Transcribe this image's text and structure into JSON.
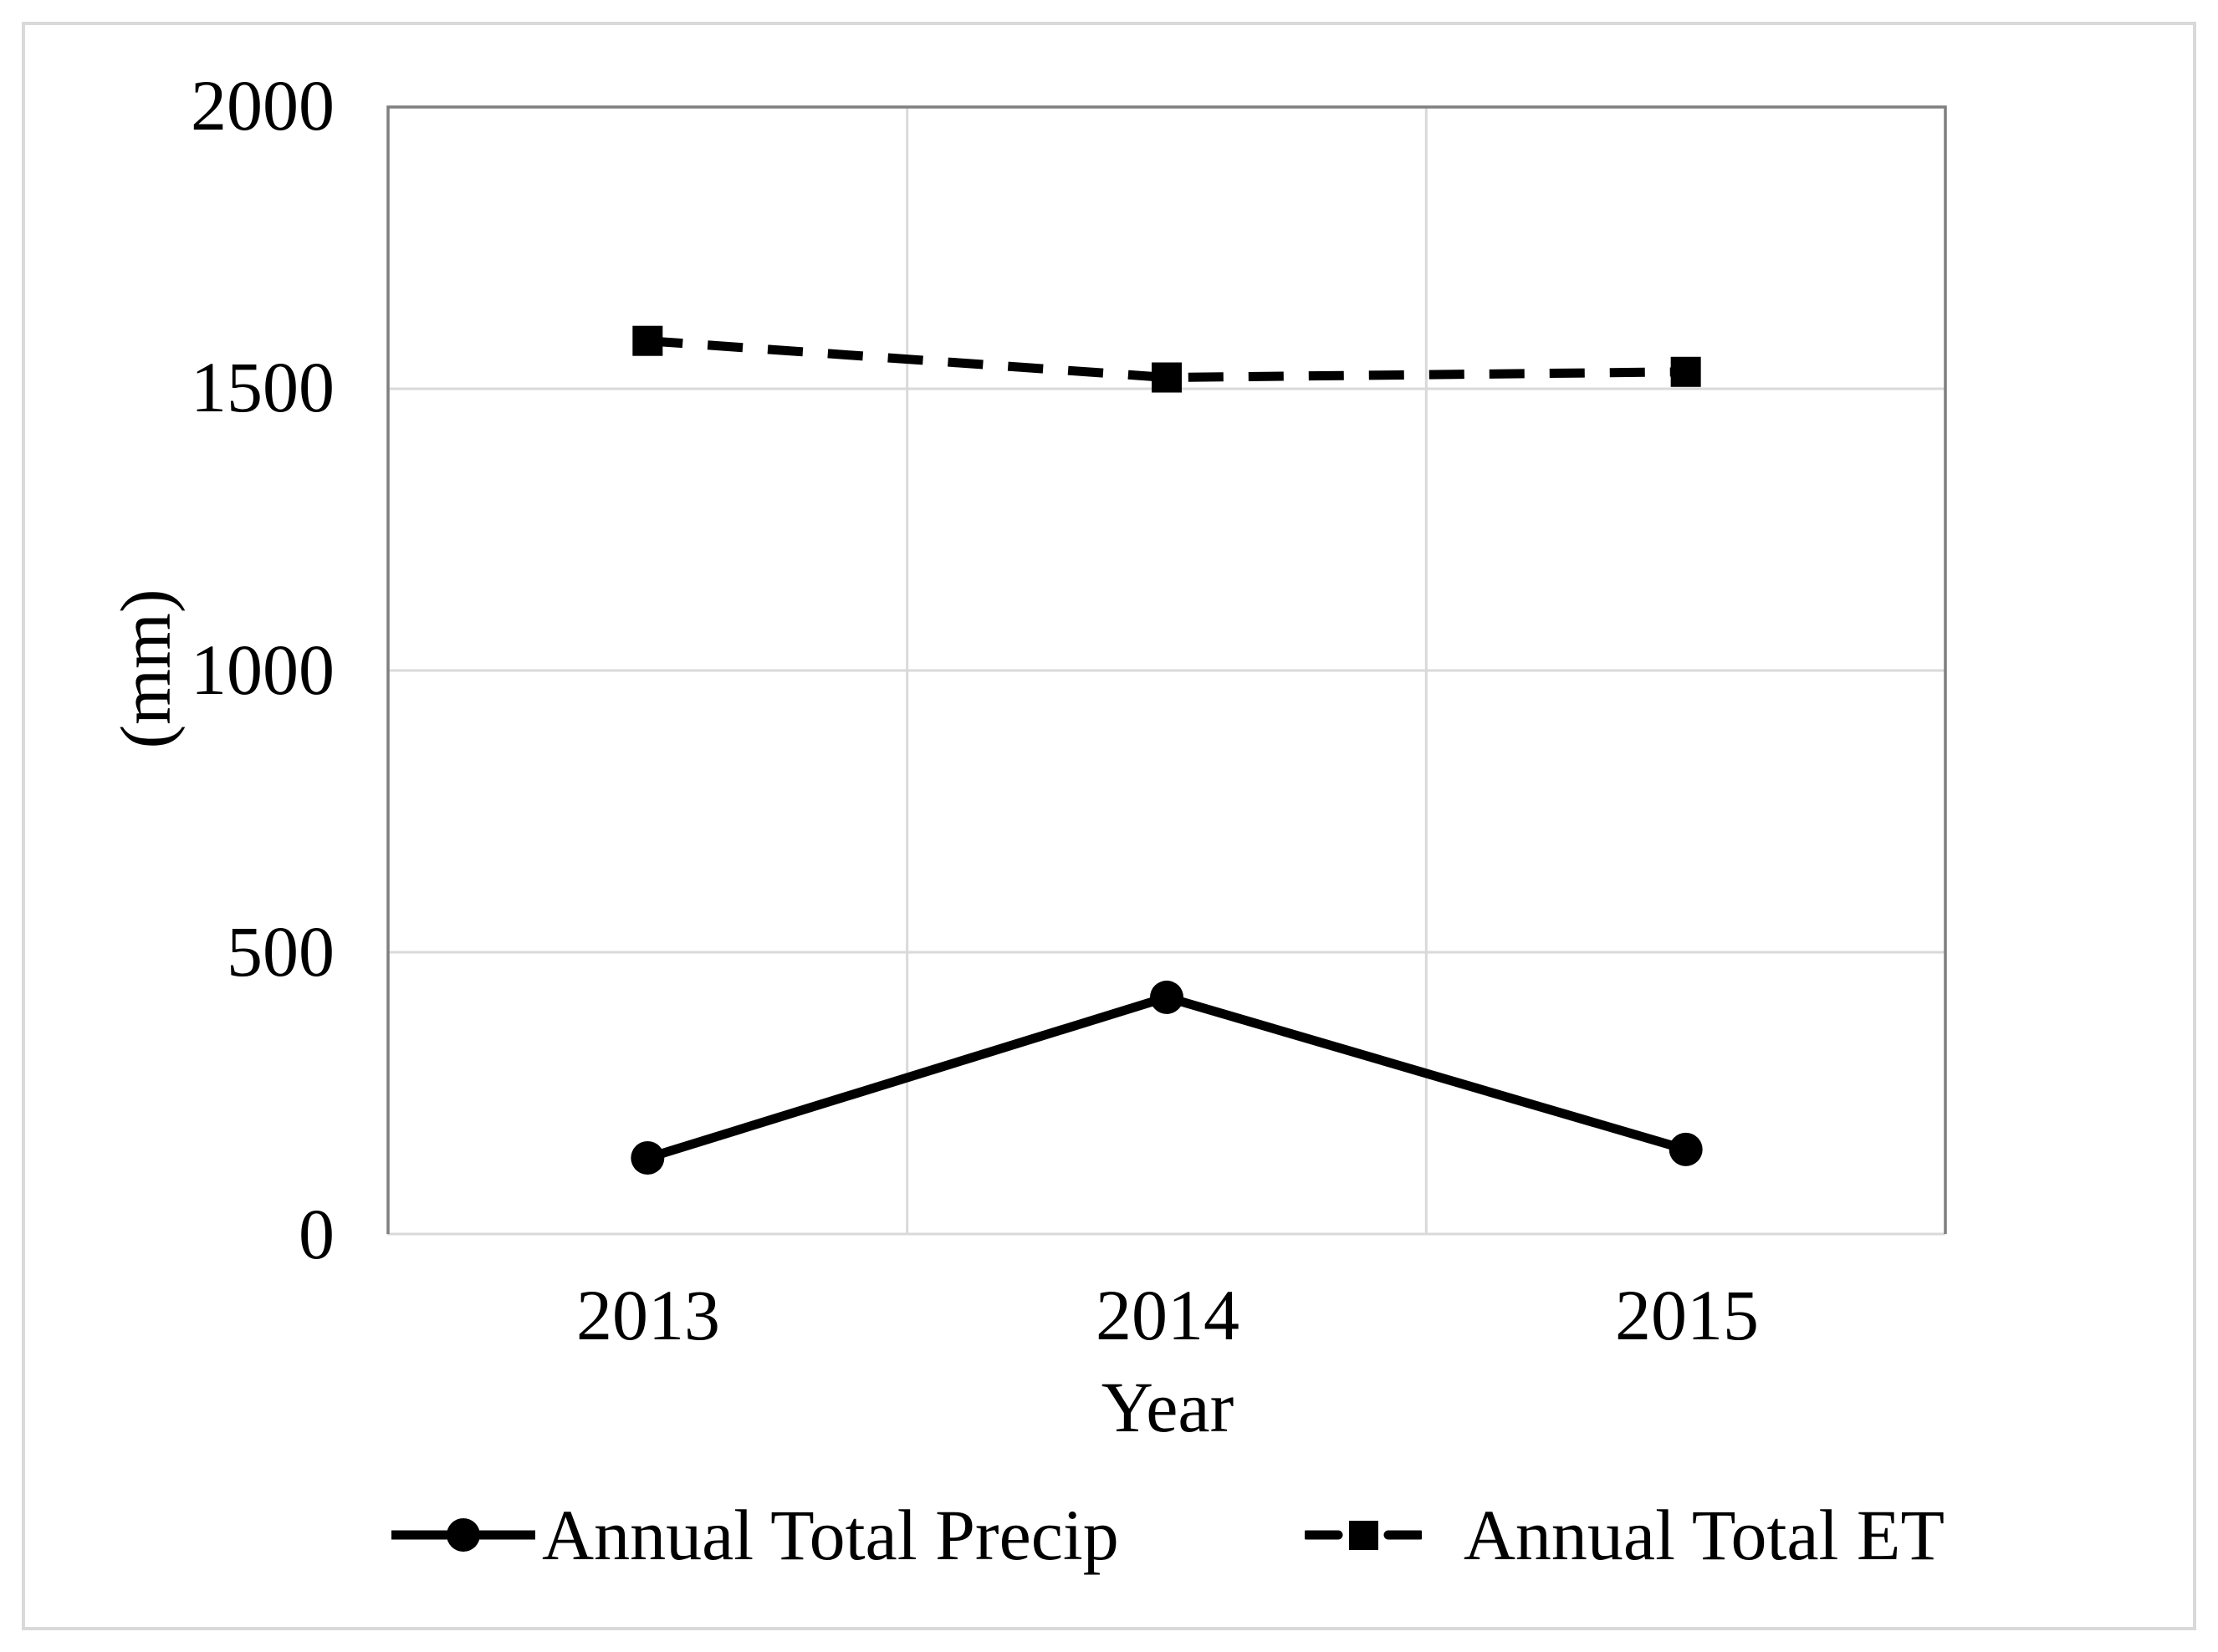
{
  "figure": {
    "yaxis": {
      "title": "(mm)",
      "ticks": [
        "2000",
        "1500",
        "1000",
        "500",
        "0"
      ]
    },
    "xaxis": {
      "title": "Year",
      "ticks": [
        "2013",
        "2014",
        "2015"
      ]
    },
    "legend": {
      "items": [
        {
          "label": "Annual Total Precip",
          "marker": "circle-marker-icon",
          "line": "solid"
        },
        {
          "label": "Annual Total ET",
          "marker": "square-marker-icon",
          "line": "dashed"
        }
      ]
    },
    "colors": {
      "series": "#000000",
      "gridline": "#d9d9d9",
      "plot_border": "#7f7f7f",
      "axis_line": "#d9d9d9",
      "outer_border": "#d9d9d9",
      "background": "#ffffff"
    }
  },
  "chart_data": {
    "type": "line",
    "title": "",
    "categories": [
      "2013",
      "2014",
      "2015"
    ],
    "series": [
      {
        "name": "Annual Total Precip",
        "values": [
          135,
          420,
          150
        ],
        "line_style": "solid",
        "marker": "circle",
        "color": "#000000"
      },
      {
        "name": "Annual Total ET",
        "values": [
          1585,
          1520,
          1530
        ],
        "line_style": "dashed",
        "marker": "square",
        "color": "#000000"
      }
    ],
    "xlabel": "Year",
    "ylabel": "(mm)",
    "ylim": [
      0,
      2000
    ],
    "ytick_step": 500,
    "grid": true,
    "legend_position": "bottom"
  }
}
